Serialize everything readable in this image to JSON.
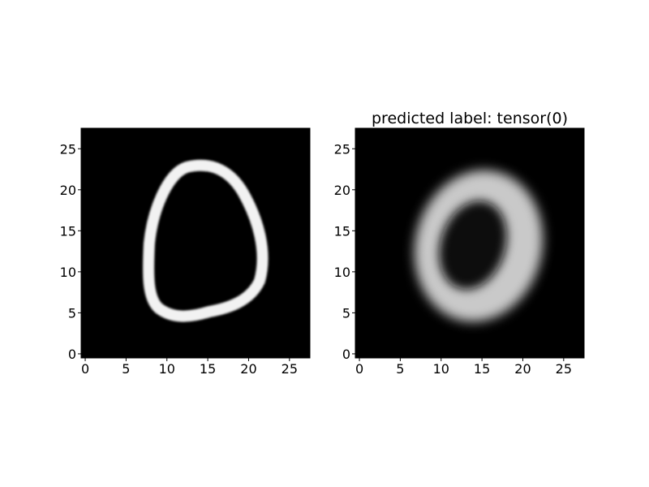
{
  "chart_data": [
    {
      "type": "heatmap",
      "title": "",
      "image": "mnist-input-digit",
      "colormap": "gray",
      "grid": false,
      "xlim": [
        -0.5,
        27.5
      ],
      "ylim": [
        27.5,
        -0.5
      ],
      "x_ticks": [
        0,
        5,
        10,
        15,
        20,
        25
      ],
      "y_ticks": [
        0,
        5,
        10,
        15,
        20,
        25
      ],
      "x_tick_labels": [
        "0",
        "5",
        "10",
        "15",
        "20",
        "25"
      ],
      "y_tick_labels": [
        "0",
        "5",
        "10",
        "15",
        "20",
        "25"
      ]
    },
    {
      "type": "heatmap",
      "title": "predicted label: tensor(0)",
      "image": "reconstructed-digit",
      "colormap": "gray",
      "grid": false,
      "xlim": [
        -0.5,
        27.5
      ],
      "ylim": [
        27.5,
        -0.5
      ],
      "x_ticks": [
        0,
        5,
        10,
        15,
        20,
        25
      ],
      "y_ticks": [
        0,
        5,
        10,
        15,
        20,
        25
      ],
      "x_tick_labels": [
        "0",
        "5",
        "10",
        "15",
        "20",
        "25"
      ],
      "y_tick_labels": [
        "0",
        "5",
        "10",
        "15",
        "20",
        "25"
      ]
    }
  ]
}
